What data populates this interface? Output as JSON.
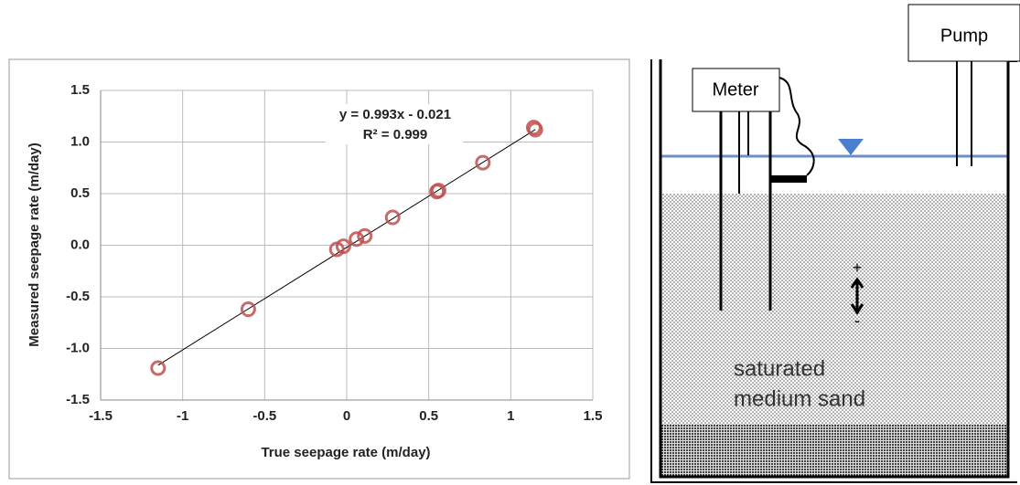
{
  "chart_data": {
    "type": "scatter",
    "x_label": "True seepage rate (m/day)",
    "y_label": "Measured seepage rate  (m/day)",
    "x": [
      -1.15,
      -0.6,
      -0.06,
      -0.02,
      0.06,
      0.11,
      0.28,
      0.55,
      0.56,
      0.83,
      1.14,
      1.15
    ],
    "values": [
      -1.19,
      -0.62,
      -0.04,
      -0.01,
      0.06,
      0.09,
      0.27,
      0.52,
      0.53,
      0.8,
      1.14,
      1.12
    ],
    "color": "#c0504d",
    "trendline": {
      "slope": 0.993,
      "intercept": -0.021,
      "equation": "y = 0.993x - 0.021",
      "r2": "R² = 0.999"
    },
    "xlim": [
      -1.5,
      1.5
    ],
    "xticks": [
      -1.5,
      -1,
      -0.5,
      0,
      0.5,
      1,
      1.5
    ],
    "ylim": [
      -1.5,
      1.5
    ],
    "yticks": [
      -1.5,
      {
        "value": -1,
        "label": "-1.0"
      },
      -0.5,
      {
        "value": 0,
        "label": "0.0"
      },
      0.5,
      {
        "value": 1,
        "label": "1.0"
      },
      1.5
    ],
    "grid": true
  },
  "diagram": {
    "pump": "Pump",
    "meter": "Meter",
    "plus": "+",
    "minus": "-",
    "sand_line1": "saturated",
    "sand_line2": "medium sand"
  }
}
